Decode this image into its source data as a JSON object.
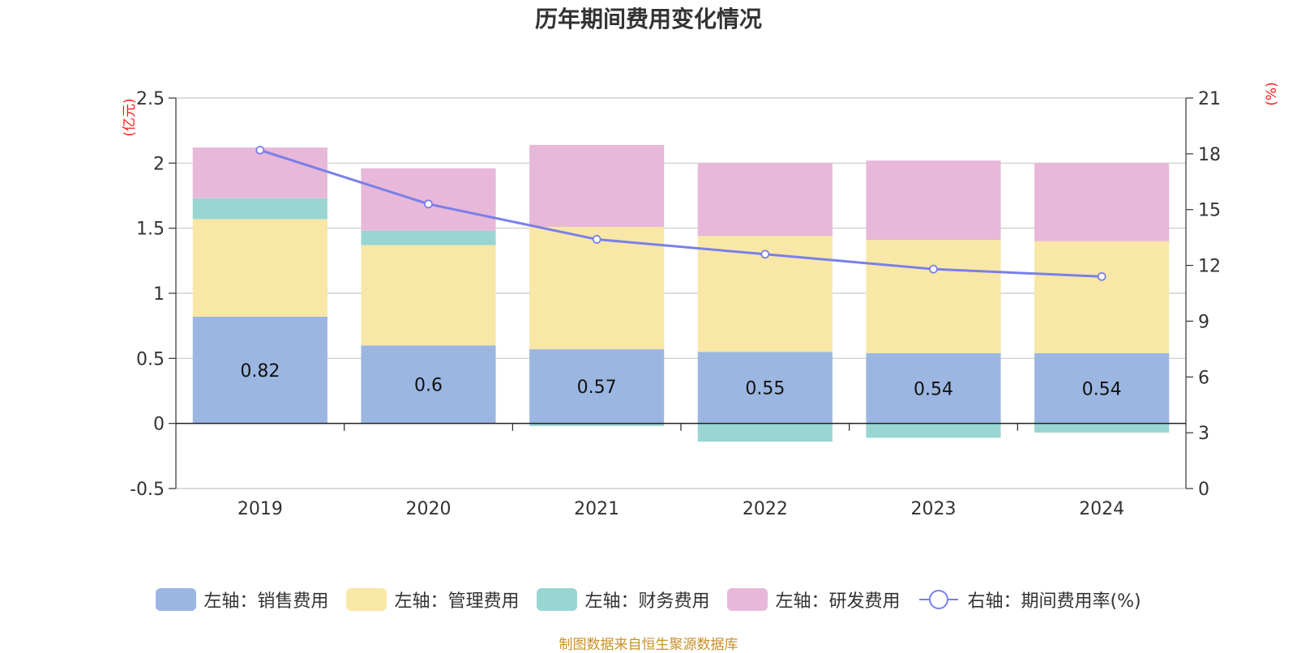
{
  "title": "历年期间费用变化情况",
  "source_note": "制图数据来自恒生聚源数据库",
  "chart_data": {
    "type": "bar",
    "stacked": true,
    "title": "历年期间费用变化情况",
    "categories": [
      "2019",
      "2020",
      "2021",
      "2022",
      "2023",
      "2024"
    ],
    "left_axis": {
      "unit": "(亿元)",
      "ylim": [
        -0.5,
        2.5
      ],
      "ticks": [
        "-0.5",
        "0",
        "0.5",
        "1",
        "1.5",
        "2",
        "2.5"
      ]
    },
    "right_axis": {
      "unit": "(%)",
      "ylim": [
        0,
        21
      ],
      "ticks": [
        "0",
        "3",
        "6",
        "9",
        "12",
        "15",
        "18",
        "21"
      ]
    },
    "grid": true,
    "legend_position": "bottom",
    "series": [
      {
        "name": "左轴：销售费用",
        "type": "bar",
        "axis": "left",
        "color": "#9bb6e0",
        "values": [
          0.82,
          0.6,
          0.57,
          0.55,
          0.54,
          0.54
        ],
        "show_labels": true
      },
      {
        "name": "左轴：管理费用",
        "type": "bar",
        "axis": "left",
        "color": "#f8e7a6",
        "values": [
          0.75,
          0.77,
          0.94,
          0.89,
          0.87,
          0.86
        ]
      },
      {
        "name": "左轴：财务费用",
        "type": "bar",
        "axis": "left",
        "color": "#99d5d3",
        "values": [
          0.16,
          0.11,
          -0.02,
          -0.14,
          -0.11,
          -0.07
        ]
      },
      {
        "name": "左轴：研发费用",
        "type": "bar",
        "axis": "left",
        "color": "#e7b8d9",
        "values": [
          0.39,
          0.48,
          0.63,
          0.56,
          0.61,
          0.6
        ]
      },
      {
        "name": "右轴：期间费用率(%)",
        "type": "line",
        "axis": "right",
        "color": "#7a7fe8",
        "values": [
          18.2,
          15.3,
          13.4,
          12.6,
          11.8,
          11.4
        ]
      }
    ]
  }
}
